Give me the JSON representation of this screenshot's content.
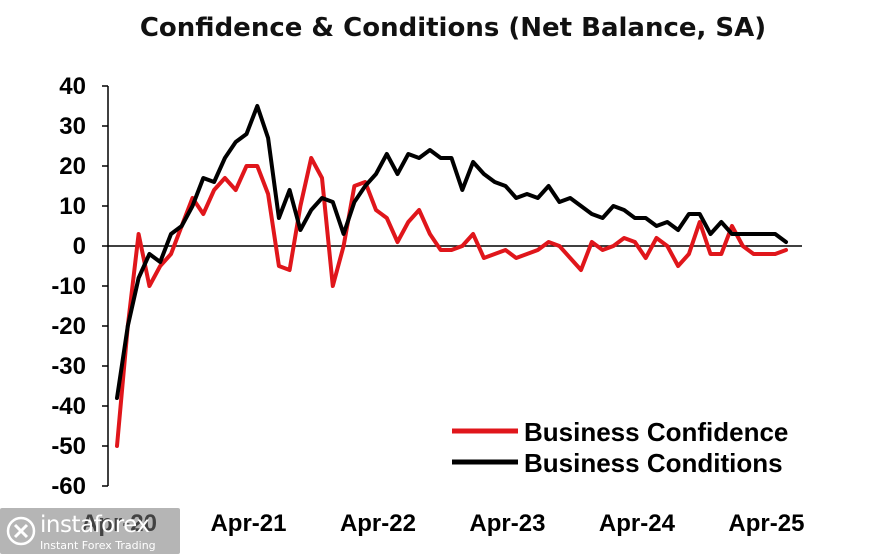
{
  "chart_data": {
    "type": "line",
    "title": "Confidence & Conditions (Net Balance, SA)",
    "xlabel": "",
    "ylabel": "",
    "ylim": [
      -60,
      40
    ],
    "yticks": [
      40,
      30,
      20,
      10,
      0,
      -10,
      -20,
      -30,
      -40,
      -50,
      -60
    ],
    "xticks": [
      "Apr-20",
      "Apr-21",
      "Apr-22",
      "Apr-23",
      "Apr-24",
      "Apr-25"
    ],
    "months": 63,
    "legend_position": "bottom-right",
    "series": [
      {
        "name": "Business Confidence",
        "color": "#e0161b",
        "values": [
          -50,
          -20,
          3,
          -10,
          -5,
          -2,
          5,
          12,
          8,
          14,
          17,
          14,
          20,
          20,
          13,
          -5,
          -6,
          10,
          22,
          17,
          -10,
          0,
          15,
          16,
          9,
          7,
          1,
          6,
          9,
          3,
          -1,
          -1,
          0,
          3,
          -3,
          -2,
          -1,
          -3,
          -2,
          -1,
          1,
          0,
          -3,
          -6,
          1,
          -1,
          0,
          2,
          1,
          -3,
          2,
          0,
          -5,
          -2,
          6,
          -2,
          -2,
          5,
          0,
          -2,
          -2,
          -2,
          -1
        ]
      },
      {
        "name": "Business Conditions",
        "color": "#000000",
        "values": [
          -38,
          -20,
          -8,
          -2,
          -4,
          3,
          5,
          10,
          17,
          16,
          22,
          26,
          28,
          35,
          27,
          7,
          14,
          4,
          9,
          12,
          11,
          3,
          11,
          15,
          18,
          23,
          18,
          23,
          22,
          24,
          22,
          22,
          14,
          21,
          18,
          16,
          15,
          12,
          13,
          12,
          15,
          11,
          12,
          10,
          8,
          7,
          10,
          9,
          7,
          7,
          5,
          6,
          4,
          8,
          8,
          3,
          6,
          3,
          3,
          3,
          3,
          3,
          1
        ]
      }
    ]
  },
  "watermark": {
    "name": "instaforex",
    "tagline": "Instant Forex Trading"
  }
}
